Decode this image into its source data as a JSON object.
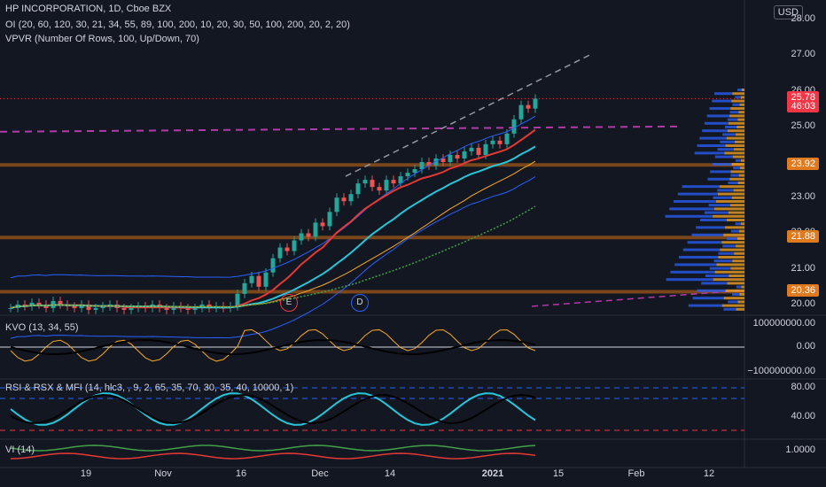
{
  "header": {
    "title": "HP INCORPORATION, 1D, Cboe BZX",
    "indicator_oi": "OI (20, 60, 120, 30, 21, 34, 55, 89, 100, 200, 10, 20, 30, 50, 100, 200, 20, 2, 20)",
    "indicator_vpvr": "VPVR (Number Of Rows, 100, Up/Down, 70)"
  },
  "currency": "USD",
  "price_axis": [
    "28.00",
    "27.00",
    "26.00",
    "25.00",
    "23.00",
    "22.00",
    "21.00",
    "20.00"
  ],
  "price_tags": [
    {
      "label": "25.78",
      "color": "#f23645"
    },
    {
      "label": "46:03",
      "color": "#f23645"
    },
    {
      "label": "23.92",
      "color": "#e07a1f"
    },
    {
      "label": "21.88",
      "color": "#e07a1f"
    },
    {
      "label": "20.36",
      "color": "#e07a1f"
    }
  ],
  "events": {
    "earnings": "E",
    "dividend": "D"
  },
  "panes": {
    "kvo": {
      "label": "KVO (13, 34, 55)",
      "ticks": [
        "100000000.00",
        "0.00",
        "−100000000.00"
      ]
    },
    "rsi": {
      "label": "RSI & RSX & MFI (14, hlc3, , 9, 2, 65, 35, 70, 30, 35, 40, 10000, 1)",
      "ticks": [
        "80.00",
        "40.00"
      ]
    },
    "vi": {
      "label": "VI (14)",
      "ticks": [
        "1.0000"
      ]
    }
  },
  "time_axis": [
    {
      "label": "19",
      "bold": false
    },
    {
      "label": "Nov",
      "bold": false
    },
    {
      "label": "16",
      "bold": false
    },
    {
      "label": "Dec",
      "bold": false
    },
    {
      "label": "14",
      "bold": false
    },
    {
      "label": "2021",
      "bold": true
    },
    {
      "label": "15",
      "bold": false
    },
    {
      "label": "Feb",
      "bold": false
    },
    {
      "label": "12",
      "bold": false
    }
  ],
  "chart_data": {
    "type": "candlestick",
    "ylim": [
      19.7,
      28.3
    ],
    "closes": [
      19.9,
      20.0,
      19.95,
      20.05,
      20.0,
      19.9,
      20.1,
      20.0,
      19.95,
      19.9,
      20.0,
      19.85,
      19.9,
      19.95,
      20.0,
      19.9,
      19.85,
      19.9,
      19.95,
      19.9,
      20.0,
      19.9,
      19.85,
      19.95,
      19.9,
      19.85,
      19.9,
      20.0,
      19.9,
      19.95,
      19.9,
      19.95,
      20.3,
      20.6,
      20.8,
      20.5,
      20.9,
      21.3,
      21.6,
      21.5,
      21.8,
      22.0,
      21.9,
      22.3,
      22.2,
      22.6,
      23.0,
      22.9,
      23.1,
      23.4,
      23.5,
      23.3,
      23.2,
      23.5,
      23.4,
      23.6,
      23.7,
      23.8,
      24.0,
      23.9,
      24.1,
      24.0,
      24.2,
      24.1,
      24.3,
      24.4,
      24.2,
      24.5,
      24.6,
      24.5,
      24.8,
      25.2,
      25.6,
      25.5,
      25.78
    ],
    "bb_upper_note": "Bollinger band and moving averages drawn from closes"
  }
}
